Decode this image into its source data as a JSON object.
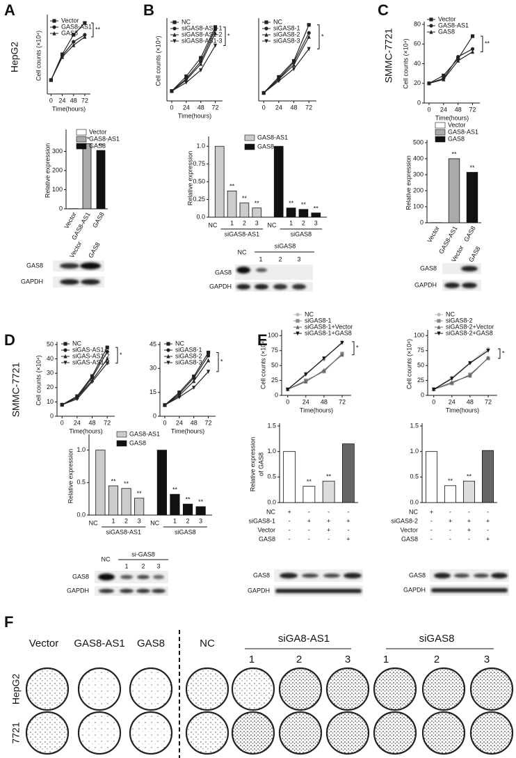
{
  "panels": {
    "A": {
      "letter": "A",
      "cell_line": "HepG2",
      "blot": {
        "lanes": [
          "Vector",
          "GAS8"
        ],
        "rows": [
          "GAS8",
          "GAPDH"
        ]
      }
    },
    "B": {
      "letter": "B",
      "blot": {
        "control": "NC",
        "group": "siGAS8",
        "lanes": [
          "1",
          "2",
          "3"
        ],
        "rows": [
          "GAS8",
          "GAPDH"
        ]
      }
    },
    "C": {
      "letter": "C",
      "cell_line": "SMMC-7721",
      "blot": {
        "lanes": [
          "Vector",
          "GAS8"
        ],
        "rows": [
          "GAS8",
          "GAPDH"
        ]
      }
    },
    "D": {
      "letter": "D",
      "cell_line": "SMMC-7721",
      "blot": {
        "control": "NC",
        "group": "si-GAS8",
        "lanes": [
          "1",
          "2",
          "3"
        ],
        "rows": [
          "GAS8",
          "GAPDH"
        ]
      }
    },
    "E": {
      "letter": "E",
      "blots": [
        {
          "rows": [
            "GAS8",
            "GAPDH"
          ]
        },
        {
          "rows": [
            "GAS8",
            "GAPDH"
          ]
        }
      ]
    },
    "F": {
      "letter": "F",
      "columns": [
        "Vector",
        "GAS8-AS1",
        "GAS8",
        "NC"
      ],
      "groups": [
        {
          "name": "siGA8-AS1",
          "lanes": [
            "1",
            "2",
            "3"
          ]
        },
        {
          "name": "siGAS8",
          "lanes": [
            "1",
            "2",
            "3"
          ]
        }
      ],
      "rows": [
        "HepG2",
        "7721"
      ]
    }
  },
  "chart_data": [
    {
      "type": "line",
      "ylabel": "Cell counts (×10⁴)",
      "xlabel": "Time(hours)",
      "x": [
        0,
        24,
        48,
        72
      ],
      "xlim": [
        -8,
        84
      ],
      "xticks": [
        0,
        24,
        48,
        72
      ],
      "ylim": [
        0,
        110
      ],
      "annotation": "**",
      "series": [
        {
          "name": "Vector",
          "color": "#222222",
          "marker": "square",
          "values": [
            20,
            57,
            85,
            102
          ]
        },
        {
          "name": "GAS8-AS1",
          "color": "#222222",
          "marker": "circle",
          "values": [
            20,
            55,
            75,
            85
          ]
        },
        {
          "name": "GAS8",
          "color": "#222222",
          "marker": "triangle",
          "values": [
            20,
            53,
            70,
            82
          ]
        }
      ]
    },
    {
      "type": "bar",
      "ylabel": "Relative expression",
      "categories": [
        "Vector",
        "GAS8-AS1",
        "GAS8"
      ],
      "values": [
        1,
        340,
        305
      ],
      "colors": [
        "#ffffff",
        "#aaaaaa",
        "#111111"
      ],
      "significance": [
        null,
        "**",
        "**"
      ],
      "ylim": [
        0,
        400
      ],
      "yticks": [
        0,
        100,
        200,
        300
      ],
      "legend": true
    },
    {
      "type": "line",
      "ylabel": "Cell counts (×10⁴)",
      "xlabel": "Time(hours)",
      "x": [
        0,
        24,
        48,
        72
      ],
      "xlim": [
        -8,
        84
      ],
      "xticks": [
        0,
        24,
        48,
        72
      ],
      "ylim": [
        0,
        65
      ],
      "annotation": "*",
      "series": [
        {
          "name": "NC",
          "color": "#222222",
          "marker": "square",
          "values": [
            8,
            20,
            35,
            60
          ]
        },
        {
          "name": "siGAS8-AS1-1",
          "color": "#222222",
          "marker": "circle",
          "values": [
            8,
            18,
            32,
            58
          ]
        },
        {
          "name": "siGAS8-AS1-2",
          "color": "#222222",
          "marker": "triangle",
          "values": [
            8,
            17,
            30,
            55
          ]
        },
        {
          "name": "siGAS8-AS1-3",
          "color": "#222222",
          "marker": "down",
          "values": [
            8,
            15,
            25,
            45
          ]
        }
      ]
    },
    {
      "type": "line",
      "x": [
        0,
        24,
        48,
        72
      ],
      "xlim": [
        -8,
        84
      ],
      "xticks": [
        0,
        24,
        48,
        72
      ],
      "ylim": [
        0,
        100
      ],
      "annotation": "*",
      "series": [
        {
          "name": "NC",
          "color": "#222222",
          "marker": "square",
          "values": [
            10,
            30,
            50,
            95
          ]
        },
        {
          "name": "siGAS8-1",
          "color": "#222222",
          "marker": "circle",
          "values": [
            10,
            28,
            48,
            85
          ]
        },
        {
          "name": "siGAS8-2",
          "color": "#222222",
          "marker": "triangle",
          "values": [
            10,
            27,
            45,
            80
          ]
        },
        {
          "name": "siGAS8-3",
          "color": "#222222",
          "marker": "down",
          "values": [
            10,
            25,
            40,
            65
          ]
        }
      ]
    },
    {
      "type": "bar",
      "ylabel": "Relative expression",
      "categories": [
        "NC",
        "1",
        "2",
        "3"
      ],
      "ylim": [
        0,
        1.1
      ],
      "yticks": [
        {
          "value": 0,
          "label": "0.0"
        },
        0.25,
        {
          "value": 0.5,
          "label": "0.50"
        },
        0.75,
        {
          "value": 1,
          "label": "1.0"
        }
      ],
      "series": [
        {
          "name": "GAS8-AS1",
          "group": "siGAS8-AS1",
          "color": "#cccccc",
          "values": [
            1,
            0.37,
            0.2,
            0.13
          ],
          "significance": [
            null,
            "**",
            "**",
            "**"
          ]
        },
        {
          "name": "GAS8",
          "group": "siGAS8",
          "color": "#111111",
          "values": [
            1,
            0.13,
            0.11,
            0.06
          ],
          "significance": [
            null,
            "**",
            "**",
            "**"
          ]
        }
      ]
    },
    {
      "type": "line",
      "ylabel": "Cell counts (×10⁴)",
      "xlabel": "Time(hours)",
      "x": [
        0,
        24,
        48,
        72
      ],
      "xlim": [
        -8,
        84
      ],
      "xticks": [
        0,
        24,
        48,
        72
      ],
      "ylim": [
        0,
        80
      ],
      "yticks": [
        0,
        20,
        40,
        60,
        80
      ],
      "annotation": "**",
      "series": [
        {
          "name": "Vector",
          "color": "#222222",
          "marker": "square",
          "values": [
            20,
            28,
            45,
            68
          ]
        },
        {
          "name": "GAS8-AS1",
          "color": "#222222",
          "marker": "circle",
          "values": [
            20,
            25,
            47,
            55
          ]
        },
        {
          "name": "GAS8",
          "color": "#222222",
          "marker": "triangle",
          "values": [
            20,
            24,
            43,
            52
          ]
        }
      ]
    },
    {
      "type": "bar",
      "ylabel": "Relative expression",
      "categories": [
        "Vector",
        "GAS8-AS1",
        "GAS8"
      ],
      "values": [
        1,
        400,
        315
      ],
      "colors": [
        "#ffffff",
        "#aaaaaa",
        "#111111"
      ],
      "significance": [
        null,
        "**",
        "**"
      ],
      "ylim": [
        0,
        500
      ],
      "yticks": [
        0,
        100,
        200,
        300,
        400,
        500
      ],
      "legend": true
    },
    {
      "type": "line",
      "ylabel": "Cell counts (×10⁴)",
      "xlabel": "Time(hours)",
      "x": [
        0,
        24,
        48,
        72
      ],
      "xlim": [
        -8,
        84
      ],
      "xticks": [
        0,
        24,
        48,
        72
      ],
      "ylim": [
        0,
        50
      ],
      "yticks": [
        0,
        10,
        20,
        30,
        40,
        50
      ],
      "annotation": "*",
      "series": [
        {
          "name": "NC",
          "color": "#222222",
          "marker": "square",
          "values": [
            8,
            14,
            28,
            48
          ]
        },
        {
          "name": "siGAS-AS1-1",
          "color": "#222222",
          "marker": "circle",
          "values": [
            8,
            13,
            27,
            45
          ]
        },
        {
          "name": "siGAS-AS1-2",
          "color": "#222222",
          "marker": "triangle",
          "values": [
            8,
            13,
            25,
            40
          ]
        },
        {
          "name": "siGAS-AS1-3",
          "color": "#222222",
          "marker": "down",
          "values": [
            8,
            12,
            24,
            37
          ]
        }
      ]
    },
    {
      "type": "line",
      "xlabel": "Time(hours)",
      "x": [
        0,
        24,
        48,
        72
      ],
      "xlim": [
        -8,
        84
      ],
      "xticks": [
        0,
        24,
        48,
        72
      ],
      "ylim": [
        0,
        45
      ],
      "yticks": [
        0,
        15,
        30,
        45
      ],
      "annotation": "*",
      "series": [
        {
          "name": "NC",
          "color": "#222222",
          "marker": "square",
          "values": [
            7,
            15,
            25,
            40
          ]
        },
        {
          "name": "siGAS8-1",
          "color": "#222222",
          "marker": "circle",
          "values": [
            7,
            14,
            24,
            38
          ]
        },
        {
          "name": "siGAS8-2",
          "color": "#222222",
          "marker": "triangle",
          "values": [
            7,
            13,
            22,
            35
          ]
        },
        {
          "name": "siGAS8-3",
          "color": "#222222",
          "marker": "down",
          "values": [
            7,
            12,
            18,
            28
          ]
        }
      ]
    },
    {
      "type": "bar",
      "ylabel": "Relative expression",
      "categories": [
        "NC",
        "1",
        "2",
        "3"
      ],
      "ylim": [
        0,
        1.2
      ],
      "yticks": [
        {
          "value": 0,
          "label": "0.0"
        },
        0.5,
        {
          "value": 1,
          "label": "1.0"
        }
      ],
      "series": [
        {
          "name": "GAS8-AS1",
          "group": "siGAS8-AS1",
          "color": "#cccccc",
          "values": [
            1,
            0.45,
            0.41,
            0.26
          ],
          "significance": [
            null,
            "**",
            "**",
            "**"
          ]
        },
        {
          "name": "GAS8",
          "group": "siGAS8",
          "color": "#111111",
          "values": [
            1,
            0.32,
            0.17,
            0.13
          ],
          "significance": [
            null,
            "**",
            "**",
            "**"
          ]
        }
      ]
    },
    {
      "type": "line",
      "ylabel": "Cell counts (×10⁴)",
      "xlabel": "Time(hours)",
      "x": [
        0,
        24,
        48,
        72
      ],
      "xlim": [
        -8,
        84
      ],
      "xticks": [
        0,
        24,
        48,
        72
      ],
      "ylim": [
        0,
        105
      ],
      "yticks": [
        0,
        25,
        50,
        75,
        100
      ],
      "annotation": "*",
      "series": [
        {
          "name": "NC",
          "color": "#bbbbbb",
          "marker": "circle",
          "values": [
            10,
            37,
            60,
            90
          ]
        },
        {
          "name": "siGAS8-1",
          "color": "#888888",
          "marker": "square",
          "values": [
            10,
            25,
            40,
            70
          ]
        },
        {
          "name": "siGAS8-1+Vector",
          "color": "#666666",
          "marker": "triangle",
          "values": [
            10,
            23,
            42,
            68
          ]
        },
        {
          "name": "siGAS8-1+GAS8",
          "color": "#111111",
          "marker": "down",
          "values": [
            10,
            35,
            62,
            88
          ]
        }
      ]
    },
    {
      "type": "line",
      "ylabel": "Cell counts (×10⁴)",
      "xlabel": "Time(hours)",
      "x": [
        0,
        24,
        48,
        72
      ],
      "xlim": [
        -8,
        84
      ],
      "xticks": [
        0,
        24,
        48,
        72
      ],
      "ylim": [
        0,
        105
      ],
      "yticks": [
        0,
        25,
        50,
        75,
        100
      ],
      "annotation": "*",
      "series": [
        {
          "name": "NC",
          "color": "#bbbbbb",
          "marker": "circle",
          "values": [
            10,
            30,
            55,
            78
          ]
        },
        {
          "name": "siGAS8-2",
          "color": "#888888",
          "marker": "square",
          "values": [
            10,
            20,
            35,
            62
          ]
        },
        {
          "name": "siGAS8-2+Vector",
          "color": "#666666",
          "marker": "triangle",
          "values": [
            10,
            22,
            33,
            63
          ]
        },
        {
          "name": "siGAS8-2+GAS8",
          "color": "#111111",
          "marker": "down",
          "values": [
            10,
            28,
            54,
            75
          ]
        }
      ]
    },
    {
      "type": "bar",
      "ylabel": [
        "Relative expression",
        "of GAS8"
      ],
      "values": [
        1,
        0.32,
        0.42,
        1.15
      ],
      "colors": [
        "#ffffff",
        "#ffffff",
        "#dddddd",
        "#666666"
      ],
      "significance": [
        null,
        "**",
        "**",
        null
      ],
      "ylim": [
        0,
        1.5
      ],
      "yticks": [
        {
          "value": 0,
          "label": "0.0"
        },
        0.5,
        {
          "value": 1,
          "label": "1.0"
        },
        1.5
      ],
      "conditions": [
        {
          "name": "NC",
          "marks": [
            "+",
            "-",
            "-",
            "-"
          ]
        },
        {
          "name": "siGAS8-1",
          "marks": [
            "-",
            "+",
            "+",
            "+"
          ]
        },
        {
          "name": "Vector",
          "marks": [
            "-",
            "-",
            "+",
            "-"
          ]
        },
        {
          "name": "GAS8",
          "marks": [
            "-",
            "-",
            "-",
            "+"
          ]
        }
      ]
    },
    {
      "type": "bar",
      "values": [
        1,
        0.33,
        0.42,
        1.02
      ],
      "colors": [
        "#ffffff",
        "#ffffff",
        "#dddddd",
        "#666666"
      ],
      "significance": [
        null,
        "**",
        "**",
        null
      ],
      "ylim": [
        0,
        1.5
      ],
      "yticks": [
        {
          "value": 0,
          "label": "0.0"
        },
        0.5,
        {
          "value": 1,
          "label": "1.0"
        },
        1.5
      ],
      "conditions": [
        {
          "name": "NC",
          "marks": [
            "+",
            "-",
            "-",
            "-"
          ]
        },
        {
          "name": "siGAS8-2",
          "marks": [
            "-",
            "+",
            "+",
            "+"
          ]
        },
        {
          "name": "Vector",
          "marks": [
            "-",
            "-",
            "+",
            "-"
          ]
        },
        {
          "name": "GAS8",
          "marks": [
            "-",
            "-",
            "-",
            "+"
          ]
        }
      ]
    }
  ]
}
